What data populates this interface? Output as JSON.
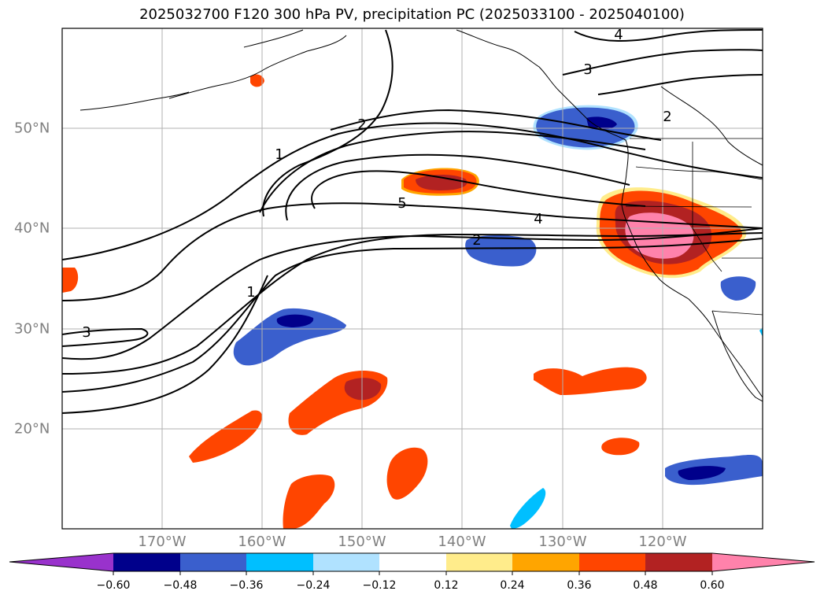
{
  "title": "2025032700 F120 300 hPa PV, precipitation PC (2025033100 - 2025040100)",
  "map": {
    "lon_labels": [
      "170°W",
      "160°W",
      "150°W",
      "140°W",
      "130°W",
      "120°W"
    ],
    "lat_labels": [
      "50°N",
      "40°N",
      "30°N",
      "20°N"
    ],
    "pv_contour_labels": [
      "1",
      "2",
      "3",
      "4",
      "5",
      "2",
      "1",
      "3",
      "4",
      "2"
    ]
  },
  "colorbar": {
    "ticks": [
      "−0.60",
      "−0.48",
      "−0.36",
      "−0.24",
      "−0.12",
      "0.12",
      "0.24",
      "0.36",
      "0.48",
      "0.60"
    ],
    "colors": [
      "#9932cc",
      "#00008b",
      "#3a5fcd",
      "#00bfff",
      "#b0e2ff",
      "#ffffff",
      "#ffec8b",
      "#ffa500",
      "#ff4500",
      "#b22222",
      "#ff82ab"
    ]
  }
}
